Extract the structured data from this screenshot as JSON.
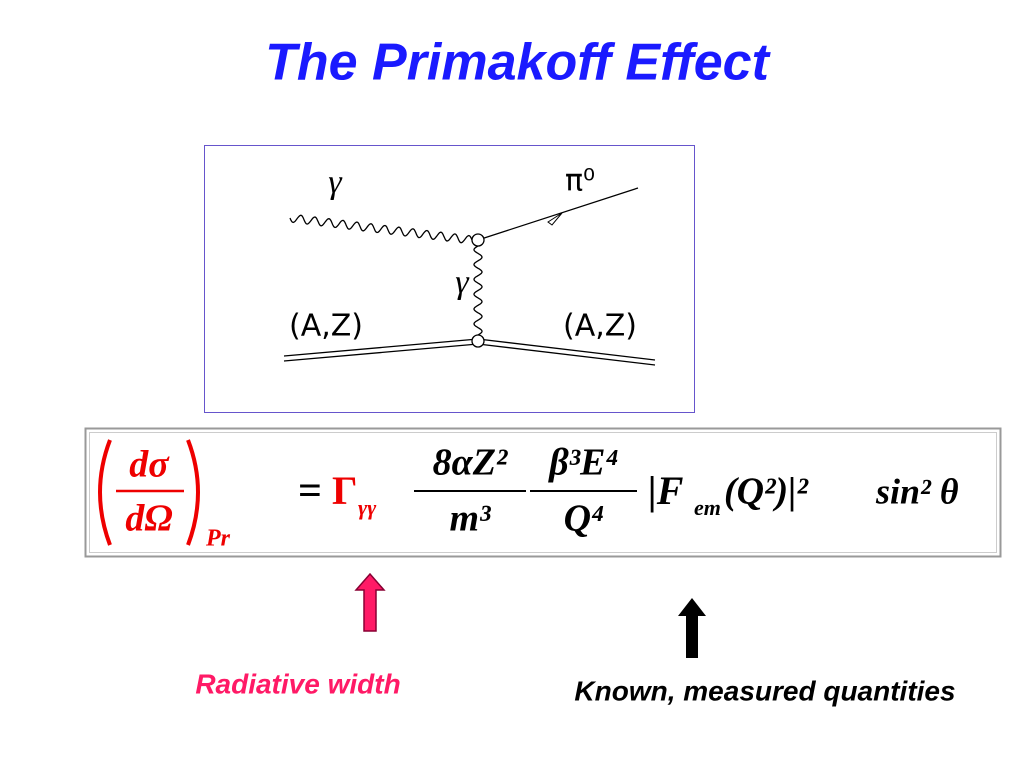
{
  "title": "The Primakoff Effect",
  "diagram": {
    "incoming_photon": "γ",
    "outgoing_pion": "π⁰",
    "exchanged_photon": "γ",
    "nucleus_in": "(A,Z)",
    "nucleus_out": "(A,Z)"
  },
  "formula": {
    "lhs_numerator": "dσ",
    "lhs_denominator": "dΩ",
    "lhs_subscript": "Pr",
    "equals": "=",
    "width": "Γ",
    "width_subscript": "γγ",
    "frac1_numerator": "8αZ²",
    "frac1_denominator": "m³",
    "frac2_numerator": "β³E⁴",
    "frac2_denominator": "Q⁴",
    "form_factor_open": "|F",
    "form_factor_subscript": "em",
    "form_factor_close": "(Q²)|²",
    "angle": "sin² θ"
  },
  "annotations": {
    "radiative_width": "Radiative width",
    "known_quantities": "Known, measured quantities"
  }
}
